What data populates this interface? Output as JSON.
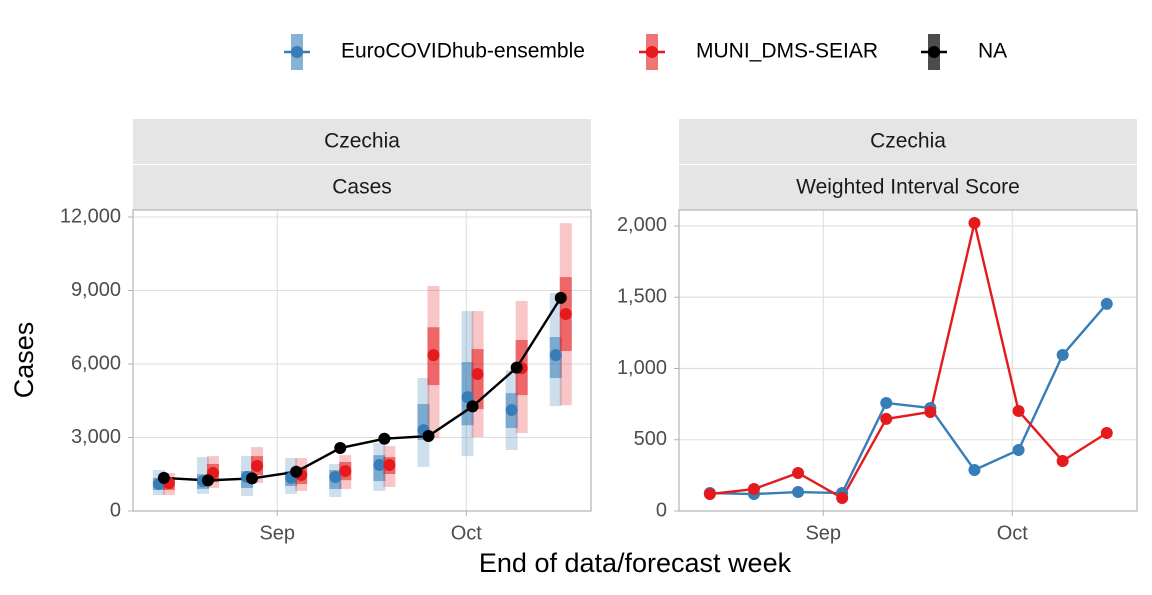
{
  "chart_data": [
    {
      "type": "forecast",
      "strips": [
        "Czechia",
        "Cases"
      ],
      "ylabel": "Cases",
      "xlabel": "End of data/forecast week",
      "x": [
        -18,
        -11,
        -4,
        3,
        10,
        17,
        24,
        31,
        38,
        45
      ],
      "xlim": [
        -22.9,
        49.8
      ],
      "xticks": [
        {
          "value": 0,
          "label": "Sep"
        },
        {
          "value": 30,
          "label": "Oct"
        }
      ],
      "ylim": [
        0,
        12286
      ],
      "yticks": [
        0,
        {
          "value": 3000,
          "label": "3,000"
        },
        {
          "value": 6000,
          "label": "6,000"
        },
        {
          "value": 9000,
          "label": "9,000"
        },
        {
          "value": 12000,
          "label": "12,000"
        }
      ],
      "grid": true,
      "legend": "top",
      "series": [
        {
          "name": "EuroCOVIDhub-ensemble",
          "color": "#377eb8",
          "values": [
            1100,
            1220,
            1390,
            1350,
            1390,
            1880,
            3300,
            4650,
            4120,
            6360
          ],
          "lower_90": [
            650,
            700,
            610,
            700,
            570,
            820,
            1800,
            2240,
            2490,
            4280
          ],
          "upper_90": [
            1670,
            2200,
            2250,
            2160,
            1920,
            2770,
            5430,
            8160,
            5750,
            8900
          ],
          "lower_50": [
            860,
            900,
            940,
            1020,
            900,
            1220,
            2900,
            3500,
            3390,
            5430
          ],
          "upper_50": [
            1350,
            1500,
            1630,
            1630,
            1670,
            2280,
            4370,
            6080,
            4810,
            7100
          ]
        },
        {
          "name": "MUNI_DMS-SEIAR",
          "color": "#e41a1c",
          "values": [
            1140,
            1550,
            1840,
            1470,
            1630,
            1880,
            6360,
            5590,
            5830,
            8040
          ],
          "lower_90": [
            650,
            940,
            1140,
            820,
            900,
            980,
            2980,
            3020,
            3180,
            4320
          ],
          "upper_90": [
            1550,
            2240,
            2610,
            2160,
            2280,
            2650,
            9180,
            8160,
            8570,
            11750
          ],
          "lower_50": [
            860,
            1180,
            1470,
            1100,
            1260,
            1510,
            5140,
            4160,
            4730,
            6530
          ],
          "upper_50": [
            1350,
            1920,
            2240,
            1800,
            2000,
            2200,
            7500,
            6610,
            6980,
            9550
          ]
        },
        {
          "name": "NA",
          "color": "#000000",
          "values": [
            1350,
            1250,
            1330,
            1600,
            2570,
            2950,
            3060,
            4270,
            5850,
            8700
          ]
        }
      ]
    },
    {
      "type": "line",
      "strips": [
        "Czechia",
        "Weighted Interval Score"
      ],
      "x": [
        -18,
        -11,
        -4,
        3,
        10,
        17,
        24,
        31,
        38,
        45
      ],
      "xlim": [
        -22.9,
        49.8
      ],
      "xticks": [
        {
          "value": 0,
          "label": "Sep"
        },
        {
          "value": 30,
          "label": "Oct"
        }
      ],
      "ylim": [
        0,
        2112
      ],
      "yticks": [
        0,
        500,
        {
          "value": 1000,
          "label": "1,000"
        },
        {
          "value": 1500,
          "label": "1,500"
        },
        {
          "value": 2000,
          "label": "2,000"
        }
      ],
      "grid": true,
      "series": [
        {
          "name": "EuroCOVIDhub-ensemble",
          "color": "#377eb8",
          "values": [
            126,
            119,
            133,
            126,
            758,
            723,
            288,
            428,
            1095,
            1453
          ]
        },
        {
          "name": "MUNI_DMS-SEIAR",
          "color": "#e41a1c",
          "values": [
            119,
            154,
            267,
            91,
            646,
            695,
            2021,
            702,
            351,
            547
          ]
        }
      ]
    }
  ]
}
